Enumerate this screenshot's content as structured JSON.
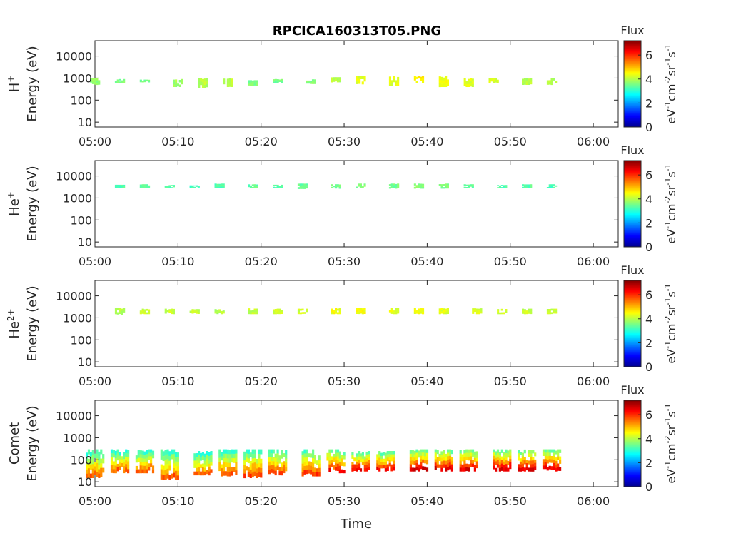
{
  "figure": {
    "title": "RPCICA160313T05.PNG",
    "xlabel": "Time"
  },
  "colorbar": {
    "title": "Flux",
    "unit_base": [
      "eV",
      "cm",
      "sr",
      "s"
    ],
    "unit_exp": [
      "-1",
      "-2",
      "-1",
      "-1"
    ],
    "ticks": [
      "0",
      "2",
      "4",
      "6"
    ],
    "range": [
      0,
      7.2
    ],
    "colormap": "jet"
  },
  "chart_data": [
    {
      "type": "heatmap",
      "species": "H",
      "species_sup": "+",
      "ylabel_unit": "Energy (eV)",
      "yscale": "log",
      "ylim": [
        6,
        50000
      ],
      "xlim": [
        "05:00",
        "06:03"
      ],
      "x_ticks": [
        "05:00",
        "05:10",
        "05:20",
        "05:30",
        "05:40",
        "05:50",
        "06:00"
      ],
      "y_ticks": [
        "10",
        "100",
        "1000",
        "10000"
      ],
      "patches": [
        {
          "t": "05:00",
          "emin": 500,
          "emax": 1000,
          "flux": 3.7
        },
        {
          "t": "05:03",
          "emin": 600,
          "emax": 900,
          "flux": 3.6
        },
        {
          "t": "05:06",
          "emin": 650,
          "emax": 850,
          "flux": 3.5
        },
        {
          "t": "05:10",
          "emin": 400,
          "emax": 900,
          "flux": 3.8
        },
        {
          "t": "05:13",
          "emin": 350,
          "emax": 1000,
          "flux": 4.0
        },
        {
          "t": "05:16",
          "emin": 400,
          "emax": 1000,
          "flux": 4.1
        },
        {
          "t": "05:19",
          "emin": 450,
          "emax": 800,
          "flux": 3.6
        },
        {
          "t": "05:22",
          "emin": 600,
          "emax": 900,
          "flux": 3.5
        },
        {
          "t": "05:26",
          "emin": 550,
          "emax": 900,
          "flux": 3.6
        },
        {
          "t": "05:29",
          "emin": 650,
          "emax": 1100,
          "flux": 4.0
        },
        {
          "t": "05:32",
          "emin": 500,
          "emax": 1200,
          "flux": 4.3
        },
        {
          "t": "05:36",
          "emin": 450,
          "emax": 1200,
          "flux": 4.3
        },
        {
          "t": "05:39",
          "emin": 600,
          "emax": 1200,
          "flux": 4.5
        },
        {
          "t": "05:42",
          "emin": 400,
          "emax": 1200,
          "flux": 4.4
        },
        {
          "t": "05:45",
          "emin": 400,
          "emax": 1000,
          "flux": 4.3
        },
        {
          "t": "05:48",
          "emin": 600,
          "emax": 1000,
          "flux": 4.2
        },
        {
          "t": "05:52",
          "emin": 500,
          "emax": 1000,
          "flux": 4.0
        },
        {
          "t": "05:55",
          "emin": 500,
          "emax": 1000,
          "flux": 4.0
        }
      ]
    },
    {
      "type": "heatmap",
      "species": "He",
      "species_sup": "+",
      "ylabel_unit": "Energy (eV)",
      "yscale": "log",
      "ylim": [
        6,
        50000
      ],
      "xlim": [
        "05:00",
        "06:03"
      ],
      "x_ticks": [
        "05:00",
        "05:10",
        "05:20",
        "05:30",
        "05:40",
        "05:50",
        "06:00"
      ],
      "y_ticks": [
        "10",
        "100",
        "1000",
        "10000"
      ],
      "patches": [
        {
          "t": "05:03",
          "emin": 2800,
          "emax": 4000,
          "flux": 3.3
        },
        {
          "t": "05:06",
          "emin": 2800,
          "emax": 4200,
          "flux": 3.4
        },
        {
          "t": "05:09",
          "emin": 2800,
          "emax": 4000,
          "flux": 3.3
        },
        {
          "t": "05:12",
          "emin": 3000,
          "emax": 3800,
          "flux": 3.2
        },
        {
          "t": "05:15",
          "emin": 2800,
          "emax": 4500,
          "flux": 3.3
        },
        {
          "t": "05:19",
          "emin": 2800,
          "emax": 4200,
          "flux": 3.4
        },
        {
          "t": "05:22",
          "emin": 2800,
          "emax": 4000,
          "flux": 3.3
        },
        {
          "t": "05:25",
          "emin": 2600,
          "emax": 4500,
          "flux": 3.4
        },
        {
          "t": "05:29",
          "emin": 2700,
          "emax": 4200,
          "flux": 3.5
        },
        {
          "t": "05:32",
          "emin": 2800,
          "emax": 4500,
          "flux": 3.6
        },
        {
          "t": "05:36",
          "emin": 2700,
          "emax": 4500,
          "flux": 3.5
        },
        {
          "t": "05:39",
          "emin": 2700,
          "emax": 4500,
          "flux": 3.6
        },
        {
          "t": "05:42",
          "emin": 2700,
          "emax": 4500,
          "flux": 3.6
        },
        {
          "t": "05:45",
          "emin": 2800,
          "emax": 4200,
          "flux": 3.4
        },
        {
          "t": "05:49",
          "emin": 2800,
          "emax": 4000,
          "flux": 3.3
        },
        {
          "t": "05:52",
          "emin": 2800,
          "emax": 4200,
          "flux": 3.3
        },
        {
          "t": "05:55",
          "emin": 2800,
          "emax": 4200,
          "flux": 3.2
        }
      ]
    },
    {
      "type": "heatmap",
      "species": "He",
      "species_sup": "2+",
      "ylabel_unit": "Energy (eV)",
      "yscale": "log",
      "ylim": [
        6,
        50000
      ],
      "xlim": [
        "05:00",
        "06:03"
      ],
      "x_ticks": [
        "05:00",
        "05:10",
        "05:20",
        "05:30",
        "05:40",
        "05:50",
        "06:00"
      ],
      "y_ticks": [
        "10",
        "100",
        "1000",
        "10000"
      ],
      "patches": [
        {
          "t": "05:03",
          "emin": 1400,
          "emax": 2800,
          "flux": 4.0
        },
        {
          "t": "05:06",
          "emin": 1500,
          "emax": 2600,
          "flux": 4.2
        },
        {
          "t": "05:09",
          "emin": 1500,
          "emax": 2600,
          "flux": 4.1
        },
        {
          "t": "05:12",
          "emin": 1500,
          "emax": 2500,
          "flux": 4.1
        },
        {
          "t": "05:15",
          "emin": 1500,
          "emax": 2500,
          "flux": 4.0
        },
        {
          "t": "05:19",
          "emin": 1500,
          "emax": 2700,
          "flux": 4.1
        },
        {
          "t": "05:22",
          "emin": 1500,
          "emax": 2600,
          "flux": 4.2
        },
        {
          "t": "05:25",
          "emin": 1500,
          "emax": 2600,
          "flux": 4.2
        },
        {
          "t": "05:29",
          "emin": 1500,
          "emax": 2800,
          "flux": 4.4
        },
        {
          "t": "05:32",
          "emin": 1500,
          "emax": 2800,
          "flux": 4.4
        },
        {
          "t": "05:36",
          "emin": 1500,
          "emax": 2800,
          "flux": 4.3
        },
        {
          "t": "05:39",
          "emin": 1500,
          "emax": 2800,
          "flux": 4.4
        },
        {
          "t": "05:42",
          "emin": 1500,
          "emax": 2800,
          "flux": 4.3
        },
        {
          "t": "05:46",
          "emin": 1500,
          "emax": 2700,
          "flux": 4.2
        },
        {
          "t": "05:49",
          "emin": 1500,
          "emax": 2600,
          "flux": 4.2
        },
        {
          "t": "05:52",
          "emin": 1500,
          "emax": 2600,
          "flux": 4.1
        },
        {
          "t": "05:55",
          "emin": 1500,
          "emax": 2600,
          "flux": 4.1
        }
      ]
    },
    {
      "type": "heatmap",
      "species": "Comet",
      "species_sup": "",
      "ylabel_unit": "Energy (eV)",
      "yscale": "log",
      "ylim": [
        6,
        50000
      ],
      "xlim": [
        "05:00",
        "06:03"
      ],
      "x_ticks": [
        "05:00",
        "05:10",
        "05:20",
        "05:30",
        "05:40",
        "05:50",
        "06:00"
      ],
      "y_ticks": [
        "10",
        "100",
        "1000",
        "10000"
      ],
      "patches": [
        {
          "t": "05:00",
          "emin": 15,
          "emax": 300,
          "flux": 5.6
        },
        {
          "t": "05:03",
          "emin": 25,
          "emax": 300,
          "flux": 5.6
        },
        {
          "t": "05:06",
          "emin": 25,
          "emax": 300,
          "flux": 5.7
        },
        {
          "t": "05:09",
          "emin": 12,
          "emax": 300,
          "flux": 5.7
        },
        {
          "t": "05:13",
          "emin": 20,
          "emax": 250,
          "flux": 5.5
        },
        {
          "t": "05:16",
          "emin": 18,
          "emax": 300,
          "flux": 5.7
        },
        {
          "t": "05:19",
          "emin": 15,
          "emax": 300,
          "flux": 5.8
        },
        {
          "t": "05:22",
          "emin": 20,
          "emax": 300,
          "flux": 5.8
        },
        {
          "t": "05:26",
          "emin": 18,
          "emax": 300,
          "flux": 5.9
        },
        {
          "t": "05:29",
          "emin": 25,
          "emax": 300,
          "flux": 6.2
        },
        {
          "t": "05:32",
          "emin": 30,
          "emax": 250,
          "flux": 6.3
        },
        {
          "t": "05:35",
          "emin": 30,
          "emax": 250,
          "flux": 6.3
        },
        {
          "t": "05:39",
          "emin": 30,
          "emax": 300,
          "flux": 6.5
        },
        {
          "t": "05:42",
          "emin": 30,
          "emax": 300,
          "flux": 6.5
        },
        {
          "t": "05:45",
          "emin": 30,
          "emax": 300,
          "flux": 6.5
        },
        {
          "t": "05:49",
          "emin": 30,
          "emax": 300,
          "flux": 6.6
        },
        {
          "t": "05:52",
          "emin": 30,
          "emax": 300,
          "flux": 6.5
        },
        {
          "t": "05:55",
          "emin": 30,
          "emax": 300,
          "flux": 6.4
        }
      ]
    }
  ]
}
